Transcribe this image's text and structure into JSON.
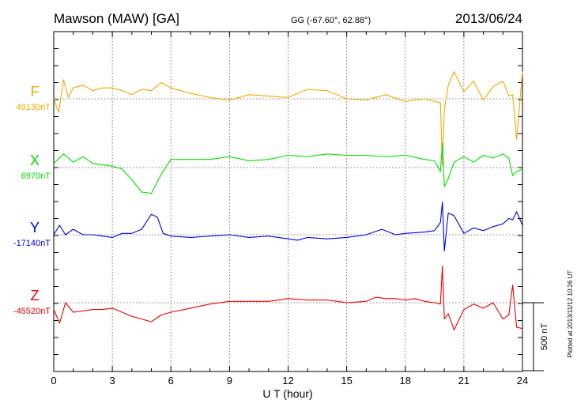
{
  "header": {
    "station": "Mawson (MAW)  [GA]",
    "coords": "GG (-67.60°,  62.88°)",
    "date": "2013/06/24"
  },
  "plot_note": "Plotted at 2013/11/12 10:26 UT",
  "scale_bar_label": "500 nT",
  "colors": {
    "F": "#f4a800",
    "X": "#00e000",
    "Y": "#0000dd",
    "Z": "#ee0000"
  },
  "chart_data": {
    "type": "line",
    "xlabel": "U T (hour)",
    "xlim": [
      0,
      24
    ],
    "x_ticks": [
      0,
      3,
      6,
      9,
      12,
      15,
      18,
      21,
      24
    ],
    "series": [
      {
        "name": "F",
        "baseline_label": "49130nT",
        "x": [
          0,
          0.25,
          0.5,
          0.75,
          1,
          1.5,
          2,
          2.5,
          3,
          3.5,
          4,
          4.5,
          5,
          5.5,
          6,
          7,
          8,
          9,
          10,
          11,
          12,
          13,
          14,
          15,
          16,
          17,
          18,
          19,
          19.5,
          19.8,
          19.9,
          20,
          20.2,
          20.5,
          21,
          21.5,
          22,
          22.5,
          23,
          23.3,
          23.5,
          23.7,
          24
        ],
        "values": [
          49130,
          49030,
          49270,
          49140,
          49210,
          49230,
          49190,
          49210,
          49210,
          49190,
          49160,
          49200,
          49190,
          49250,
          49210,
          49170,
          49140,
          49120,
          49160,
          49150,
          49140,
          49200,
          49190,
          49130,
          49120,
          49160,
          49110,
          49130,
          49110,
          49100,
          48640,
          49050,
          49230,
          49330,
          49180,
          49260,
          49120,
          49220,
          49260,
          49150,
          49160,
          48830,
          49330
        ]
      },
      {
        "name": "X",
        "baseline_label": "6970nT",
        "x": [
          0,
          0.5,
          1,
          1.5,
          2,
          2.5,
          3,
          3.5,
          4,
          4.5,
          5,
          5.5,
          6,
          7,
          8,
          9,
          10,
          11,
          12,
          13,
          14,
          15,
          16,
          17,
          18,
          19,
          19.5,
          19.8,
          19.9,
          20,
          20.2,
          20.5,
          21,
          21.5,
          22,
          22.5,
          23,
          23.3,
          23.5,
          23.7,
          24
        ],
        "values": [
          7000,
          7070,
          7010,
          7050,
          7000,
          6990,
          6980,
          6960,
          6880,
          6790,
          6780,
          6920,
          7030,
          7030,
          7030,
          7050,
          7020,
          7030,
          7060,
          7050,
          7070,
          7060,
          7060,
          7050,
          7060,
          7030,
          7020,
          6940,
          7150,
          6830,
          6890,
          7010,
          7050,
          7010,
          7060,
          7040,
          7070,
          7040,
          6910,
          6940,
          6960
        ]
      },
      {
        "name": "Y",
        "baseline_label": "-17140nT",
        "x": [
          0,
          0.3,
          0.6,
          1,
          1.5,
          2,
          2.5,
          3,
          3.5,
          4,
          4.5,
          5,
          5.3,
          5.6,
          6,
          7,
          8,
          9,
          10,
          11,
          12,
          12.5,
          13,
          14,
          15,
          16,
          16.8,
          17.5,
          18,
          19,
          19.5,
          19.8,
          19.9,
          20,
          20.2,
          20.5,
          21,
          21.5,
          22,
          22.5,
          23,
          23.3,
          23.5,
          23.7,
          24
        ],
        "values": [
          -17140,
          -17070,
          -17140,
          -17100,
          -17140,
          -17140,
          -17150,
          -17160,
          -17130,
          -17130,
          -17100,
          -16990,
          -17010,
          -17130,
          -17150,
          -17160,
          -17150,
          -17140,
          -17160,
          -17150,
          -17170,
          -17180,
          -17160,
          -17170,
          -17160,
          -17140,
          -17100,
          -17140,
          -17130,
          -17120,
          -17110,
          -17050,
          -16900,
          -17260,
          -16980,
          -17000,
          -17130,
          -17090,
          -17110,
          -17080,
          -17060,
          -17020,
          -17030,
          -16970,
          -17070
        ]
      },
      {
        "name": "Z",
        "baseline_label": "-45520nT",
        "x": [
          0,
          0.3,
          0.6,
          1,
          1.5,
          2,
          2.5,
          3,
          3.5,
          4,
          4.5,
          5,
          5.5,
          6,
          7,
          8,
          9,
          10,
          11,
          12,
          13,
          14,
          15,
          16,
          16.5,
          17,
          17.5,
          18,
          18.5,
          19,
          19.5,
          19.8,
          19.9,
          20,
          20.2,
          20.5,
          21,
          21.5,
          22,
          22.5,
          23,
          23.3,
          23.5,
          23.7,
          24
        ],
        "values": [
          -45570,
          -45670,
          -45520,
          -45590,
          -45580,
          -45570,
          -45570,
          -45560,
          -45590,
          -45620,
          -45640,
          -45660,
          -45610,
          -45590,
          -45560,
          -45530,
          -45510,
          -45510,
          -45510,
          -45490,
          -45500,
          -45500,
          -45520,
          -45510,
          -45480,
          -45490,
          -45490,
          -45500,
          -45490,
          -45510,
          -45520,
          -45530,
          -45250,
          -45640,
          -45600,
          -45720,
          -45570,
          -45530,
          -45560,
          -45520,
          -45640,
          -45610,
          -45390,
          -45700,
          -45710
        ]
      }
    ],
    "scale_nT": 500,
    "grid": "dotted"
  }
}
